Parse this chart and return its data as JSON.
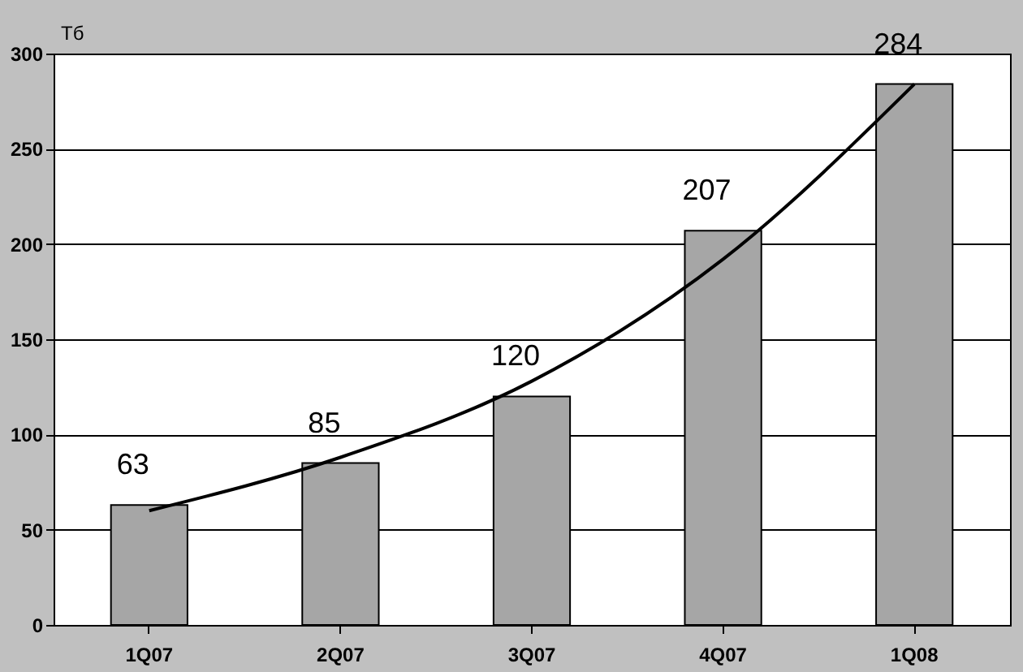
{
  "chart_data": {
    "type": "bar",
    "ylabel": "Тб",
    "categories": [
      "1Q07",
      "2Q07",
      "3Q07",
      "4Q07",
      "1Q08"
    ],
    "series": [
      {
        "color": "#a6a6a6",
        "values": [
          63,
          85,
          120,
          207,
          284
        ],
        "value_labels": [
          "63",
          "85",
          "120",
          "207",
          "284"
        ]
      },
      {
        "type": "line",
        "color": "#000000",
        "values": [
          60,
          88,
          128,
          192,
          284
        ]
      }
    ],
    "ylim": [
      0,
      300
    ],
    "yticks": [
      0,
      50,
      100,
      150,
      200,
      250,
      300
    ],
    "grid": "y",
    "marker": "none",
    "line_style": "solid"
  }
}
